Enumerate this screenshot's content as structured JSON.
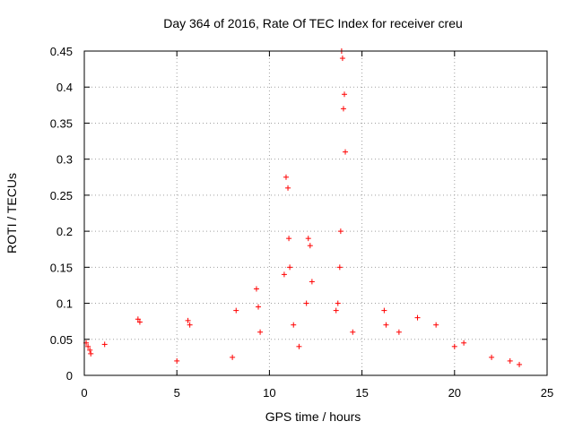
{
  "chart_data": {
    "type": "scatter",
    "title": "Day 364 of 2016, Rate Of TEC Index for receiver creu",
    "xlabel": "GPS time / hours",
    "ylabel": "ROTI / TECUs",
    "xlim": [
      0,
      25
    ],
    "ylim": [
      0,
      0.45
    ],
    "xticks": [
      "0",
      "5",
      "10",
      "15",
      "20",
      "25"
    ],
    "yticks": [
      "0",
      "0.05",
      "0.1",
      "0.15",
      "0.2",
      "0.25",
      "0.3",
      "0.35",
      "0.4",
      "0.45"
    ],
    "grid": true,
    "marker": "+",
    "color": "#ff0000",
    "series": [
      {
        "name": "ROTI",
        "x": [
          0.1,
          0.2,
          0.3,
          0.35,
          1.1,
          2.9,
          3.0,
          5.0,
          5.6,
          5.7,
          8.0,
          8.2,
          9.3,
          9.4,
          9.5,
          10.8,
          10.9,
          11.0,
          11.05,
          11.1,
          11.3,
          11.6,
          12.0,
          12.1,
          12.2,
          12.3,
          13.6,
          13.7,
          13.8,
          13.85,
          13.9,
          13.95,
          14.0,
          14.05,
          14.1,
          14.5,
          16.2,
          16.3,
          17.0,
          18.0,
          19.0,
          20.0,
          20.5,
          22.0,
          23.0,
          23.5
        ],
        "y": [
          0.045,
          0.04,
          0.035,
          0.03,
          0.043,
          0.078,
          0.074,
          0.02,
          0.076,
          0.07,
          0.025,
          0.09,
          0.12,
          0.095,
          0.06,
          0.14,
          0.275,
          0.26,
          0.19,
          0.15,
          0.07,
          0.04,
          0.1,
          0.19,
          0.18,
          0.13,
          0.09,
          0.1,
          0.15,
          0.2,
          0.45,
          0.44,
          0.37,
          0.39,
          0.31,
          0.06,
          0.09,
          0.07,
          0.06,
          0.08,
          0.07,
          0.04,
          0.045,
          0.025,
          0.02,
          0.015
        ]
      }
    ]
  }
}
